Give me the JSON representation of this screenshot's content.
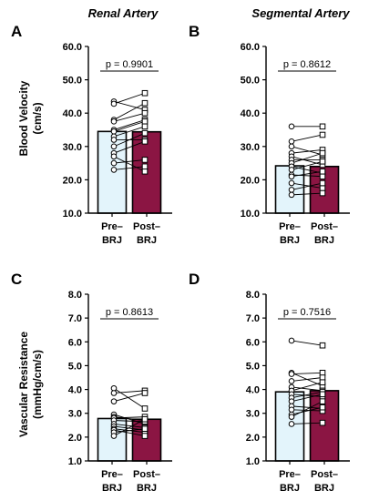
{
  "column_titles": [
    "Renal Artery",
    "Segmental Artery"
  ],
  "row_ylabels": [
    [
      "Blood Velocity",
      "(cm/s)"
    ],
    [
      "Vascular Resistance",
      "(mmHg/cm/s)"
    ]
  ],
  "colors": {
    "pre_bar": "#e3f4fb",
    "post_bar": "#8b1543",
    "axis": "#000000"
  },
  "chart_data": [
    {
      "panel": "A",
      "type": "bar",
      "categories": [
        [
          "Pre–",
          "BRJ"
        ],
        [
          "Post–",
          "BRJ"
        ]
      ],
      "ylim": [
        10,
        60
      ],
      "yticks": [
        "10.0",
        "20.0",
        "30.0",
        "40.0",
        "50.0",
        "60.0"
      ],
      "means": [
        34.5,
        34.4
      ],
      "annotation": "p = 0.9901",
      "paired": [
        [
          43.5,
          41.0
        ],
        [
          42.8,
          46.0
        ],
        [
          38.0,
          43.0
        ],
        [
          37.5,
          40.0
        ],
        [
          35.0,
          38.0
        ],
        [
          34.5,
          37.5
        ],
        [
          33.0,
          36.0
        ],
        [
          32.0,
          32.0
        ],
        [
          30.0,
          34.0
        ],
        [
          28.0,
          31.5
        ],
        [
          27.0,
          22.5
        ],
        [
          25.0,
          26.0
        ],
        [
          23.0,
          24.0
        ]
      ]
    },
    {
      "panel": "B",
      "type": "bar",
      "categories": [
        [
          "Pre–",
          "BRJ"
        ],
        [
          "Post–",
          "BRJ"
        ]
      ],
      "ylim": [
        10,
        60
      ],
      "yticks": [
        "10.0",
        "20.0",
        "30.0",
        "40.0",
        "50.0",
        "60.0"
      ],
      "means": [
        24.2,
        24.0
      ],
      "annotation": "p = 0.8612",
      "paired": [
        [
          36.0,
          36.0
        ],
        [
          31.5,
          33.5
        ],
        [
          30.0,
          27.5
        ],
        [
          28.0,
          29.0
        ],
        [
          27.0,
          24.5
        ],
        [
          26.0,
          26.0
        ],
        [
          25.0,
          28.0
        ],
        [
          24.0,
          22.0
        ],
        [
          23.0,
          25.5
        ],
        [
          21.5,
          21.0
        ],
        [
          21.0,
          22.5
        ],
        [
          19.0,
          17.5
        ],
        [
          17.0,
          19.0
        ],
        [
          15.5,
          16.0
        ]
      ]
    },
    {
      "panel": "C",
      "type": "bar",
      "categories": [
        [
          "Pre–",
          "BRJ"
        ],
        [
          "Post–",
          "BRJ"
        ]
      ],
      "ylim": [
        1,
        8
      ],
      "yticks": [
        "1.0",
        "2.0",
        "3.0",
        "4.0",
        "5.0",
        "6.0",
        "7.0",
        "8.0"
      ],
      "means": [
        2.78,
        2.75
      ],
      "annotation": "p = 0.8613",
      "paired": [
        [
          4.05,
          3.2
        ],
        [
          3.85,
          3.95
        ],
        [
          3.5,
          3.85
        ],
        [
          2.95,
          2.55
        ],
        [
          2.85,
          2.7
        ],
        [
          2.8,
          2.85
        ],
        [
          2.7,
          2.65
        ],
        [
          2.55,
          2.4
        ],
        [
          2.45,
          2.3
        ],
        [
          2.35,
          2.2
        ],
        [
          2.3,
          2.05
        ],
        [
          2.2,
          2.35
        ],
        [
          2.05,
          2.75
        ]
      ]
    },
    {
      "panel": "D",
      "type": "bar",
      "categories": [
        [
          "Pre–",
          "BRJ"
        ],
        [
          "Post–",
          "BRJ"
        ]
      ],
      "ylim": [
        1,
        8
      ],
      "yticks": [
        "1.0",
        "2.0",
        "3.0",
        "4.0",
        "5.0",
        "6.0",
        "7.0",
        "8.0"
      ],
      "means": [
        3.9,
        3.95
      ],
      "annotation": "p = 0.7516",
      "paired": [
        [
          6.05,
          5.85
        ],
        [
          4.7,
          4.15
        ],
        [
          4.65,
          4.7
        ],
        [
          4.35,
          4.5
        ],
        [
          4.1,
          3.95
        ],
        [
          3.95,
          4.3
        ],
        [
          3.8,
          3.7
        ],
        [
          3.65,
          3.9
        ],
        [
          3.5,
          3.8
        ],
        [
          3.3,
          3.2
        ],
        [
          3.15,
          3.1
        ],
        [
          2.95,
          3.25
        ],
        [
          2.85,
          3.5
        ],
        [
          2.55,
          2.6
        ]
      ]
    }
  ]
}
